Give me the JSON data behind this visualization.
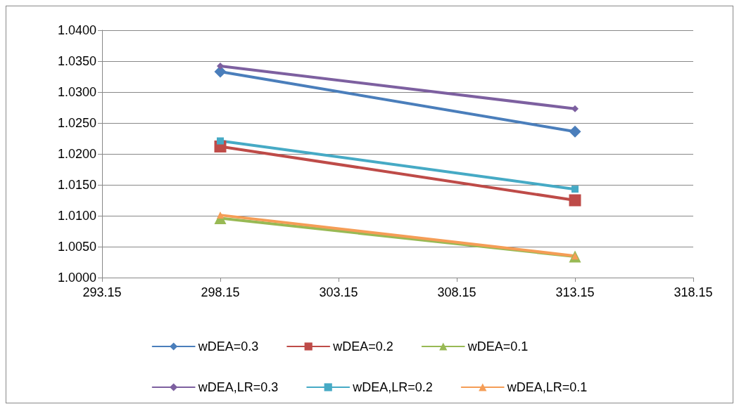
{
  "chart_data": {
    "type": "line",
    "x": [
      298.15,
      313.15
    ],
    "series": [
      {
        "name": "wDEA=0.3",
        "color": "#4a7ebb",
        "marker": "diamond",
        "values": [
          1.0333,
          1.0236
        ]
      },
      {
        "name": "wDEA=0.2",
        "color": "#be4b48",
        "marker": "square",
        "values": [
          1.0212,
          1.0125
        ]
      },
      {
        "name": "wDEA=0.1",
        "color": "#98b954",
        "marker": "triangle",
        "values": [
          1.0096,
          1.0034
        ]
      },
      {
        "name": "wDEA,LR=0.3",
        "color": "#7d60a0",
        "marker": "diamond",
        "values": [
          1.0342,
          1.0273
        ]
      },
      {
        "name": "wDEA,LR=0.2",
        "color": "#46aac5",
        "marker": "square",
        "values": [
          1.0221,
          1.0143
        ]
      },
      {
        "name": "wDEA,LR=0.1",
        "color": "#f59d56",
        "marker": "triangle",
        "values": [
          1.0101,
          1.0035
        ]
      }
    ],
    "xlim": [
      293.15,
      318.15
    ],
    "xticks": [
      293.15,
      298.15,
      303.15,
      308.15,
      313.15,
      318.15
    ],
    "ylim": [
      1.0,
      1.04
    ],
    "yticks": [
      {
        "value": 1.0,
        "label": "1.0000"
      },
      {
        "value": 1.005,
        "label": "1.0050"
      },
      {
        "value": 1.01,
        "label": "1.0100"
      },
      {
        "value": 1.015,
        "label": "1.0150"
      },
      {
        "value": 1.02,
        "label": "1.0200"
      },
      {
        "value": 1.025,
        "label": "1.0250"
      },
      {
        "value": 1.03,
        "label": "1.0300"
      },
      {
        "value": 1.035,
        "label": "1.0350"
      },
      {
        "value": 1.04,
        "label": "1.0400"
      }
    ],
    "grid": "y",
    "legend": "bottom",
    "line_style": "solid"
  }
}
